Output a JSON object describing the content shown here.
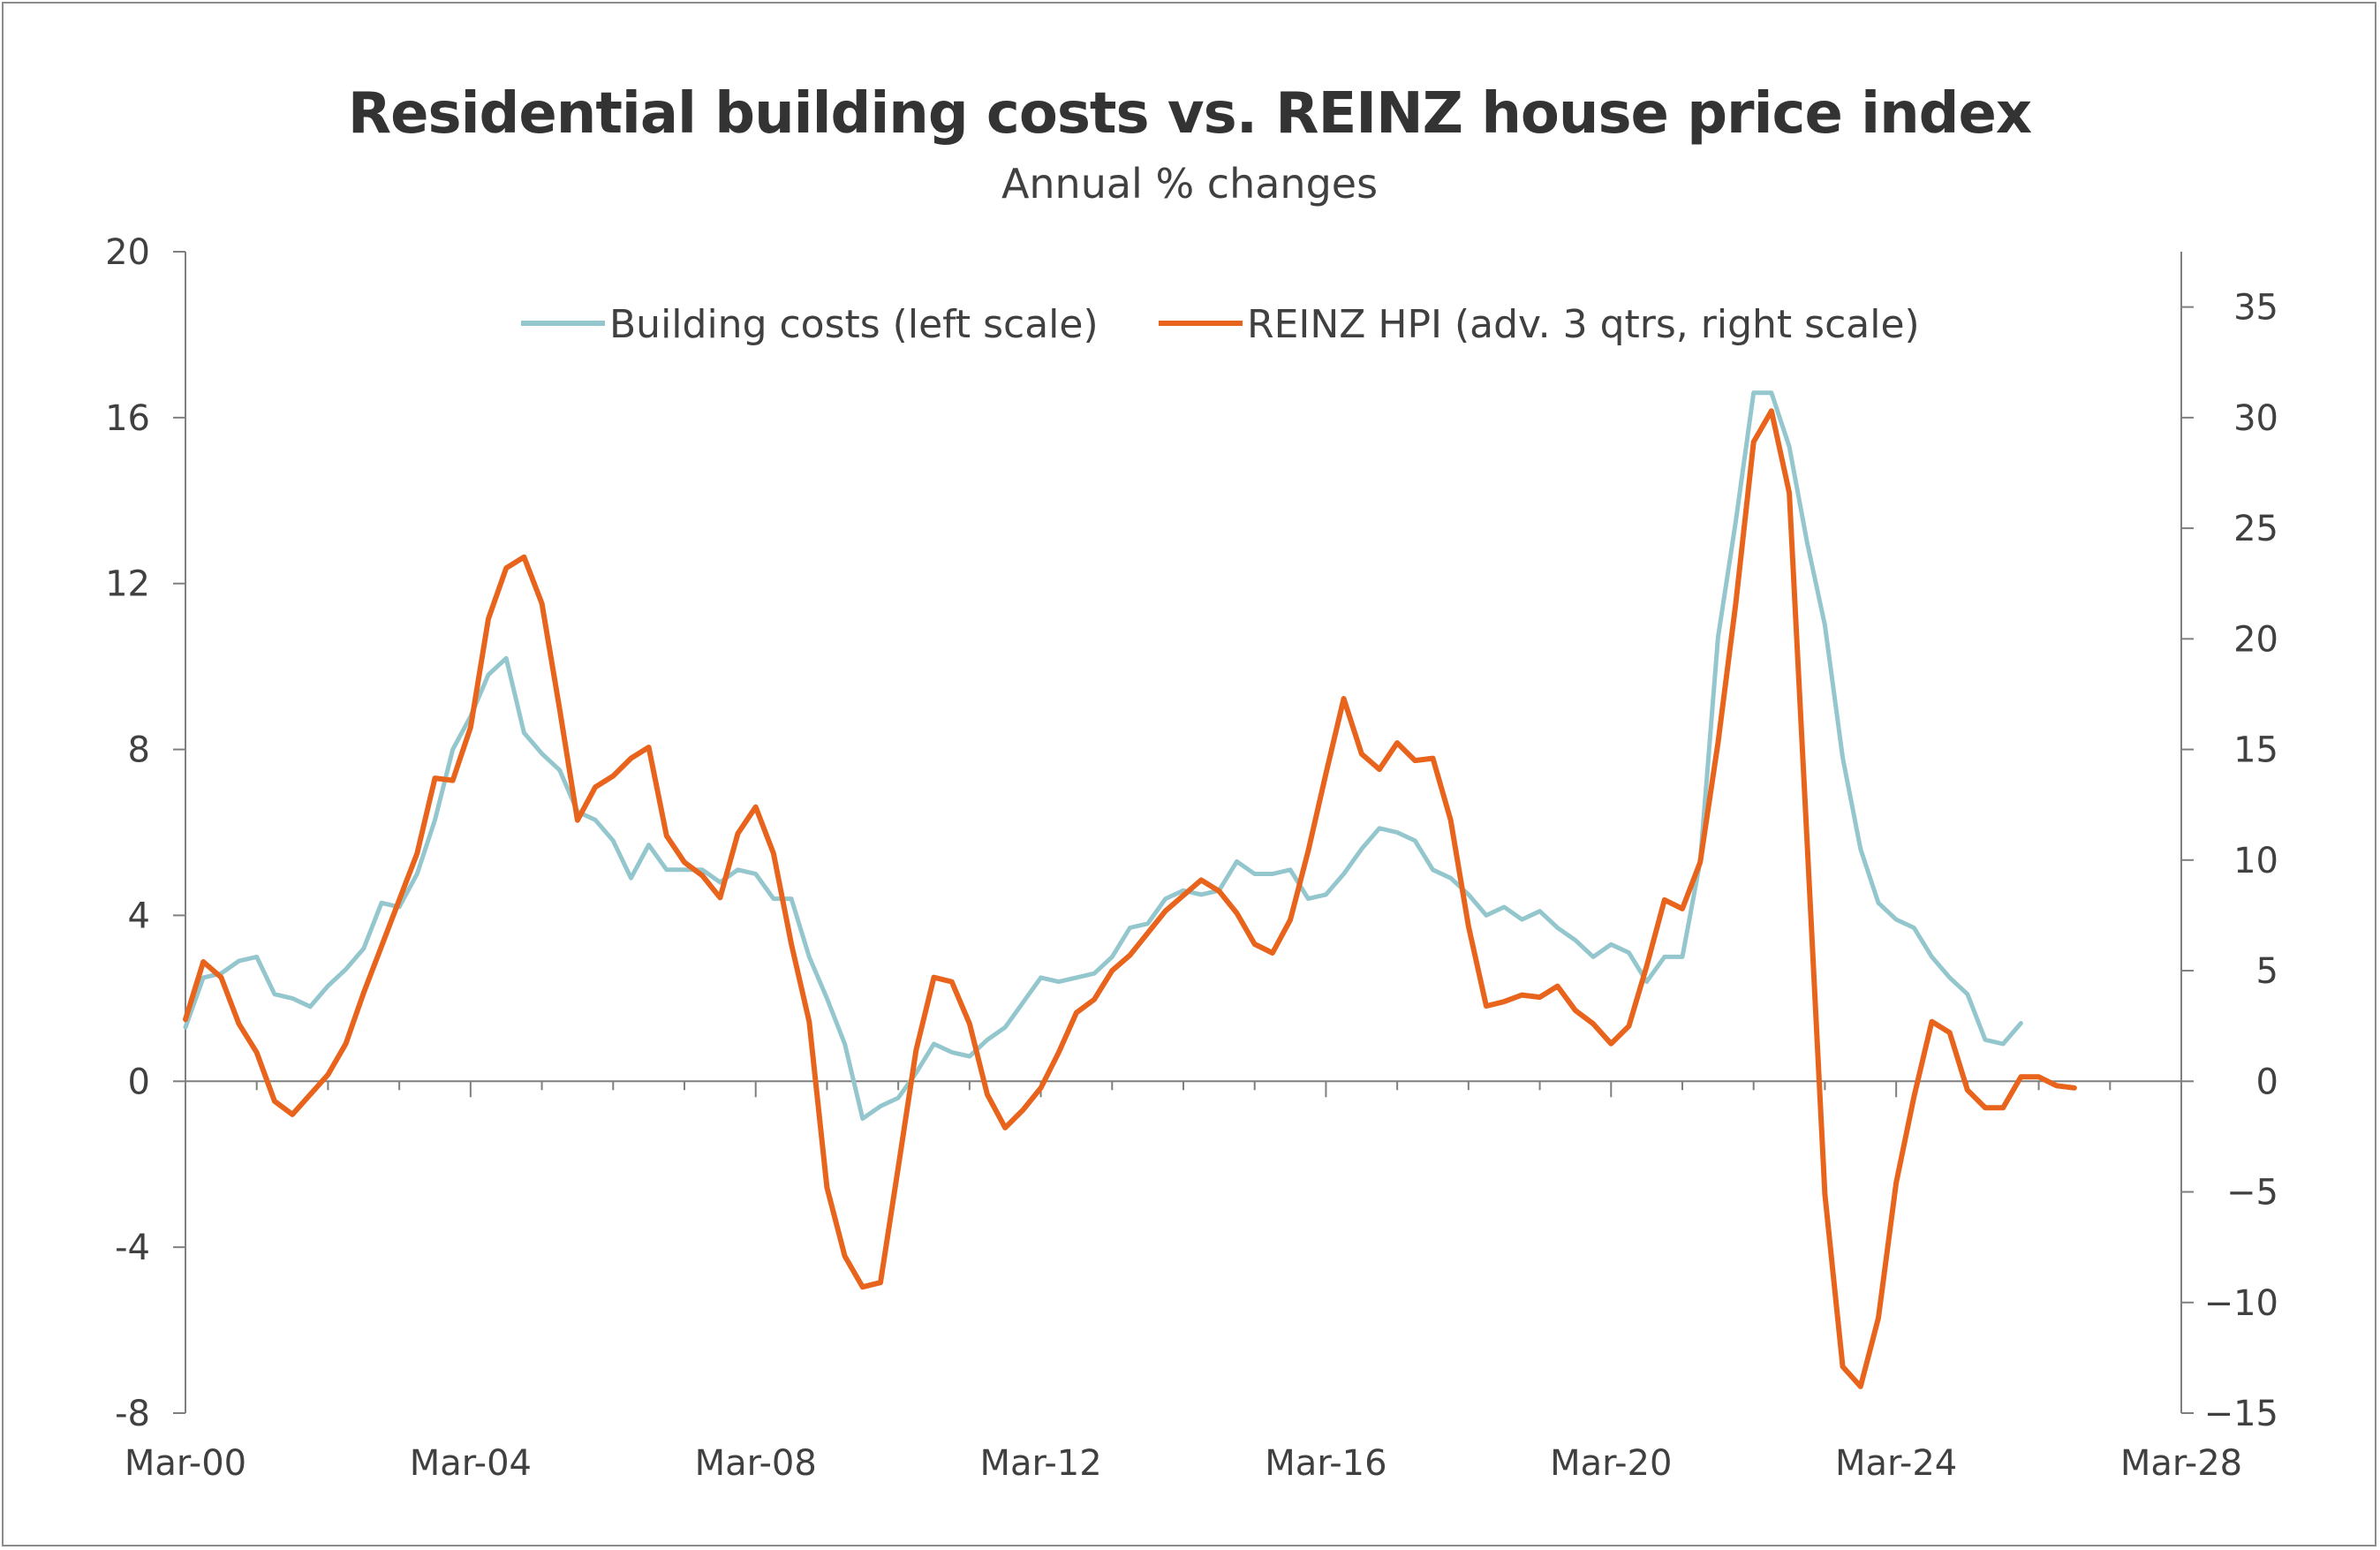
{
  "chart_data": {
    "type": "line",
    "title": "Residential building costs vs. REINZ house price index",
    "subtitle": "Annual % changes",
    "x_start": "Mar-00",
    "x_step": "quarter",
    "x_ticks": [
      "Mar-00",
      "Mar-04",
      "Mar-08",
      "Mar-12",
      "Mar-16",
      "Mar-20",
      "Mar-24",
      "Mar-28"
    ],
    "left_axis": {
      "ylim": [
        -8,
        20
      ],
      "ticks": [
        20,
        16,
        12,
        8,
        4,
        0,
        -4,
        -8
      ],
      "tick_labels": [
        "20",
        "16",
        "12",
        "8",
        "4",
        "0",
        "-4",
        "-8"
      ]
    },
    "right_axis": {
      "ylim": [
        -15,
        37.5
      ],
      "ticks": [
        35,
        30,
        25,
        20,
        15,
        10,
        5,
        0,
        -5,
        -10,
        -15
      ],
      "tick_labels": [
        "35",
        "30",
        "25",
        "20",
        "15",
        "10",
        "5",
        "0",
        "−5",
        "−10",
        "−15"
      ]
    },
    "legend_position": "top-center",
    "grid": false,
    "series": [
      {
        "name": "Building costs (left scale)",
        "axis": "left",
        "color": "#94c6cd",
        "values": [
          1.3,
          2.5,
          2.6,
          2.9,
          3.0,
          2.1,
          2.0,
          1.8,
          2.3,
          2.7,
          3.2,
          4.3,
          4.2,
          5.0,
          6.3,
          8.0,
          8.8,
          9.8,
          10.2,
          8.4,
          7.9,
          7.5,
          6.5,
          6.3,
          5.8,
          4.9,
          5.7,
          5.1,
          5.1,
          5.1,
          4.8,
          5.1,
          5.0,
          4.4,
          4.4,
          3.0,
          2.0,
          0.9,
          -0.9,
          -0.6,
          -0.4,
          0.2,
          0.9,
          0.7,
          0.6,
          1.0,
          1.3,
          1.9,
          2.5,
          2.4,
          2.5,
          2.6,
          3.0,
          3.7,
          3.8,
          4.4,
          4.6,
          4.5,
          4.6,
          5.3,
          5.0,
          5.0,
          5.1,
          4.4,
          4.5,
          5.0,
          5.6,
          6.1,
          6.0,
          5.8,
          5.1,
          4.9,
          4.5,
          4.0,
          4.2,
          3.9,
          4.1,
          3.7,
          3.4,
          3.0,
          3.3,
          3.1,
          2.4,
          3.0,
          3.0,
          5.3,
          10.7,
          13.5,
          16.6,
          16.6,
          15.3,
          13.0,
          11.0,
          7.8,
          5.6,
          4.3,
          3.9,
          3.7,
          3.0,
          2.5,
          2.1,
          1.0,
          0.9,
          1.4
        ]
      },
      {
        "name": "REINZ HPI (adv. 3 qtrs, right scale)",
        "axis": "right",
        "color": "#e8641c",
        "values": [
          2.8,
          5.4,
          4.7,
          2.6,
          1.3,
          -0.9,
          -1.5,
          -0.6,
          0.3,
          1.7,
          4.0,
          6.1,
          8.2,
          10.3,
          13.7,
          13.6,
          16.0,
          20.9,
          23.2,
          23.7,
          21.6,
          16.8,
          11.8,
          13.3,
          13.8,
          14.6,
          15.1,
          11.1,
          9.9,
          9.3,
          8.3,
          11.2,
          12.4,
          10.3,
          6.2,
          2.7,
          -4.8,
          -7.9,
          -9.3,
          -9.1,
          -3.9,
          1.4,
          4.7,
          4.5,
          2.6,
          -0.6,
          -2.1,
          -1.3,
          -0.3,
          1.3,
          3.1,
          3.7,
          5.0,
          5.7,
          6.7,
          7.7,
          8.4,
          9.1,
          8.6,
          7.6,
          6.2,
          5.8,
          7.3,
          10.4,
          13.9,
          17.3,
          14.8,
          14.1,
          15.3,
          14.5,
          14.6,
          11.8,
          7.0,
          3.4,
          3.6,
          3.9,
          3.8,
          4.3,
          3.2,
          2.6,
          1.7,
          2.5,
          5.2,
          8.2,
          7.8,
          9.9,
          15.3,
          21.6,
          28.9,
          30.3,
          26.6,
          10.9,
          -5.1,
          -12.9,
          -13.8,
          -10.7,
          -4.6,
          -0.7,
          2.7,
          2.2,
          -0.4,
          -1.2,
          -1.2,
          0.2,
          0.2,
          -0.2,
          -0.3
        ]
      }
    ]
  }
}
